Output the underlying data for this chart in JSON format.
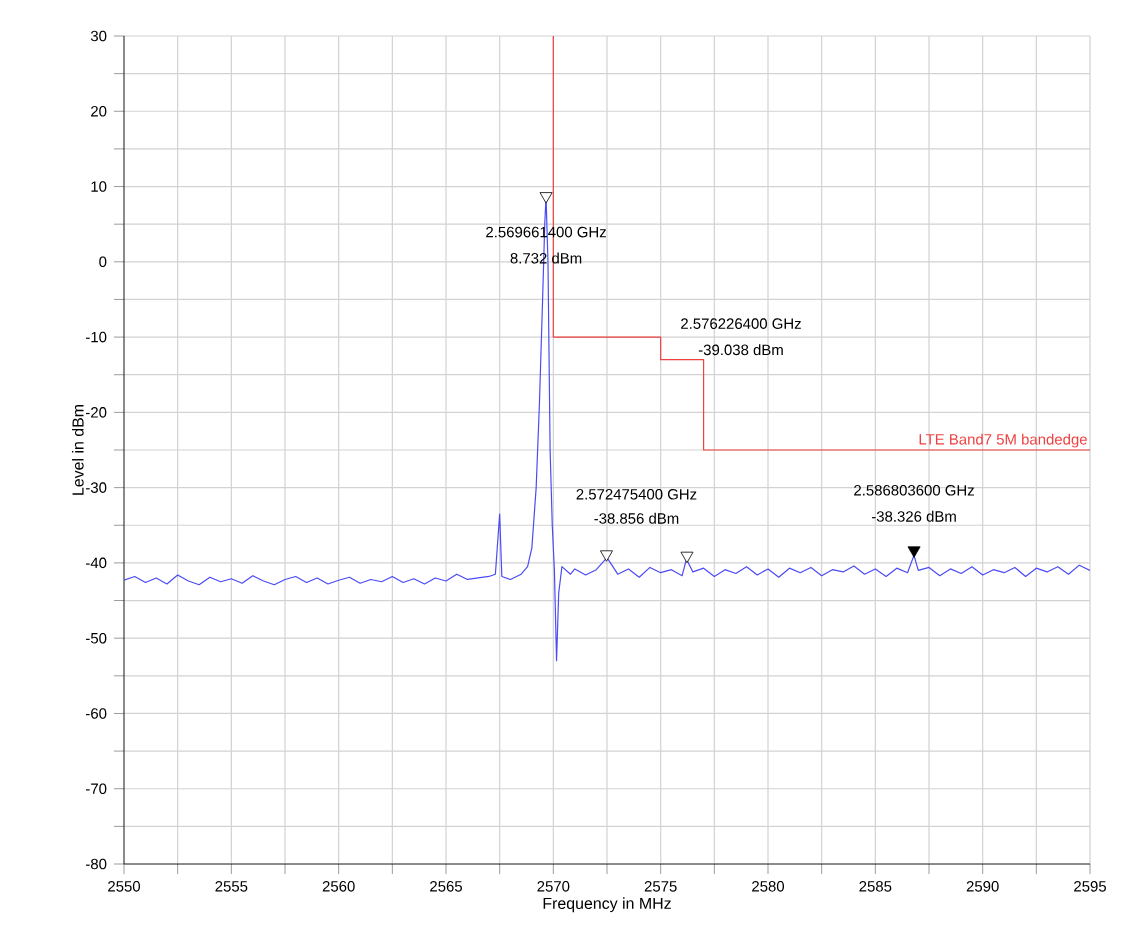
{
  "chart_data": {
    "type": "line",
    "xlabel": "Frequency in MHz",
    "ylabel": "Level in dBm",
    "xlim": [
      2550,
      2595
    ],
    "ylim": [
      -80,
      30
    ],
    "xticks": [
      2550,
      {
        "value": 2552.5,
        "label": null
      },
      2555,
      {
        "value": 2557.5,
        "label": null
      },
      2560,
      {
        "value": 2562.5,
        "label": null
      },
      2565,
      {
        "value": 2567.5,
        "label": null
      },
      2570,
      {
        "value": 2572.5,
        "label": null
      },
      2575,
      {
        "value": 2577.5,
        "label": null
      },
      2580,
      {
        "value": 2582.5,
        "label": null
      },
      2585,
      {
        "value": 2587.5,
        "label": null
      },
      2590,
      {
        "value": 2592.5,
        "label": null
      },
      2595
    ],
    "yticks": [
      -80,
      {
        "value": -75,
        "label": null
      },
      -70,
      {
        "value": -65,
        "label": null
      },
      -60,
      {
        "value": -55,
        "label": null
      },
      -50,
      {
        "value": -45,
        "label": null
      },
      -40,
      {
        "value": -35,
        "label": null
      },
      -30,
      {
        "value": -25,
        "label": null
      },
      -20,
      {
        "value": -15,
        "label": null
      },
      -10,
      {
        "value": -5,
        "label": null
      },
      0,
      {
        "value": 5,
        "label": null
      },
      10,
      {
        "value": 15,
        "label": null
      },
      20,
      {
        "value": 25,
        "label": null
      },
      30
    ],
    "grid": true,
    "line_style": "solid",
    "marker": "none",
    "series": [
      {
        "color": "#4b4bf5",
        "x": [
          2550,
          2550.5,
          2551,
          2551.5,
          2552,
          2552.5,
          2553,
          2553.5,
          2554,
          2554.5,
          2555,
          2555.5,
          2556,
          2556.5,
          2557,
          2557.5,
          2558,
          2558.5,
          2559,
          2559.5,
          2560,
          2560.5,
          2561,
          2561.5,
          2562,
          2562.5,
          2563,
          2563.5,
          2564,
          2564.5,
          2565,
          2565.5,
          2566,
          2566.5,
          2567,
          2567.3,
          2567.5,
          2567.6,
          2568,
          2568.5,
          2568.8,
          2569,
          2569.2,
          2569.35,
          2569.5,
          2569.6,
          2569.66,
          2569.75,
          2569.85,
          2569.95,
          2570.05,
          2570.15,
          2570.25,
          2570.4,
          2570.8,
          2571,
          2571.5,
          2572,
          2572.5,
          2573,
          2573.5,
          2574,
          2574.5,
          2575,
          2575.5,
          2576,
          2576.2,
          2576.5,
          2577,
          2577.5,
          2578,
          2578.5,
          2579,
          2579.5,
          2580,
          2580.5,
          2581,
          2581.5,
          2582,
          2582.5,
          2583,
          2583.5,
          2584,
          2584.5,
          2585,
          2585.5,
          2586,
          2586.5,
          2586.8,
          2587,
          2587.5,
          2588,
          2588.5,
          2589,
          2589.5,
          2590,
          2590.5,
          2591,
          2591.5,
          2592,
          2592.5,
          2593,
          2593.5,
          2594,
          2594.5,
          2595
        ],
        "values": [
          -42.3,
          -41.8,
          -42.6,
          -42.0,
          -42.8,
          -41.6,
          -42.4,
          -42.9,
          -41.9,
          -42.5,
          -42.1,
          -42.7,
          -41.7,
          -42.4,
          -42.9,
          -42.2,
          -41.8,
          -42.6,
          -42.0,
          -42.8,
          -42.3,
          -41.9,
          -42.7,
          -42.2,
          -42.5,
          -41.8,
          -42.6,
          -42.1,
          -42.8,
          -42.0,
          -42.4,
          -41.5,
          -42.2,
          -42.0,
          -41.8,
          -41.5,
          -33.5,
          -41.8,
          -42.2,
          -41.5,
          -40.5,
          -38,
          -30,
          -19,
          -5,
          5,
          8.7,
          0,
          -25,
          -35,
          -41,
          -53,
          -44,
          -40.5,
          -41.5,
          -40.8,
          -41.6,
          -40.9,
          -39.3,
          -41.5,
          -40.8,
          -41.9,
          -40.6,
          -41.3,
          -40.9,
          -41.7,
          -39.5,
          -41.2,
          -40.7,
          -41.8,
          -40.9,
          -41.4,
          -40.5,
          -41.6,
          -40.8,
          -41.9,
          -40.7,
          -41.3,
          -40.6,
          -41.7,
          -40.9,
          -41.2,
          -40.4,
          -41.5,
          -40.8,
          -41.8,
          -40.7,
          -41.3,
          -39.0,
          -41.0,
          -40.6,
          -41.7,
          -40.8,
          -41.4,
          -40.5,
          -41.6,
          -40.9,
          -41.3,
          -40.6,
          -41.8,
          -40.7,
          -41.2,
          -40.5,
          -41.5,
          -40.3,
          -41.0
        ]
      },
      {
        "name": "LTE Band7 5M bandedge",
        "color": "#f04040",
        "x": [
          2570,
          2570,
          2575,
          2575,
          2577,
          2577,
          2595
        ],
        "values": [
          30,
          -10,
          -10,
          -13,
          -13,
          -25,
          -25
        ]
      },
      {
        "type": "scatter",
        "marker": "triangle",
        "color": "#ffffff",
        "x": [
          2569.6614,
          2572.4754,
          2576.2264
        ],
        "values": [
          8.732,
          -38.856,
          -39.038
        ]
      },
      {
        "type": "scatter",
        "marker": "triangle",
        "color": "#000000",
        "x": [
          2586.8036
        ],
        "values": [
          -38.326
        ]
      }
    ],
    "annotations": [
      "2.569661400 GHz",
      "8.732 dBm",
      "2.572475400 GHz",
      "-38.856 dBm",
      "2.576226400 GHz",
      "-39.038 dBm",
      "2.586803600 GHz",
      "-38.326 dBm"
    ]
  }
}
